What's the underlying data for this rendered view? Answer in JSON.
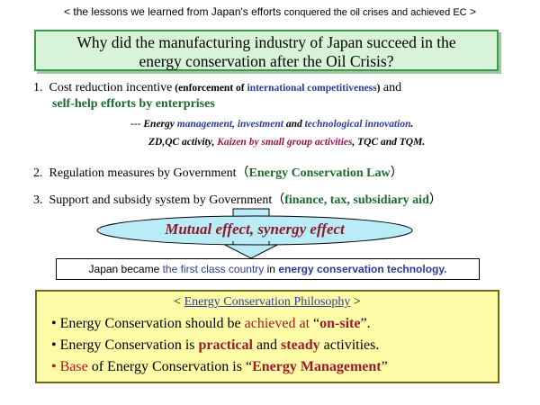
{
  "header": {
    "part1": "< the lessons we learned from Japan's efforts ",
    "part2": "conquered the oil crises and  achieved EC",
    "part3": " >"
  },
  "question": {
    "line1": "Why did the manufacturing industry of Japan succeed in the",
    "line2": "energy conservation after the Oil Crisis?"
  },
  "item1": {
    "number": "1.",
    "text": "Cost reduction incentive",
    "paren_open": " (enforcement of ",
    "paren_blue": "international competitiveness",
    "paren_close": ")",
    "and": " and",
    "line2": "self-help efforts by enterprises"
  },
  "sub1": {
    "dash": "--- ",
    "p1": "Energy ",
    "p2": "management, investment",
    "p3": " and ",
    "p4": "technological innovation",
    "p5": "."
  },
  "sub2": {
    "p1": "ZD,QC activity,  ",
    "p2": "Kaizen by small group activities",
    "p3": ", TQC and TQM."
  },
  "item2": {
    "number": "2.",
    "text": "Regulation measures by Government",
    "paren_open": "（",
    "highlight": "Energy Conservation Law",
    "paren_close": "）"
  },
  "item3": {
    "number": "3.",
    "text": "Support and subsidy system by Government",
    "paren_open": "（",
    "highlight": "finance, tax, subsidiary aid",
    "paren_close": "）"
  },
  "synergy": {
    "label": "Mutual effect, synergy effect"
  },
  "result": {
    "p1": "Japan became ",
    "p2": "the first class country",
    "p3": " in ",
    "p4": "energy conservation technology."
  },
  "philosophy": {
    "open": "< ",
    "title": "Energy Conservation Philosophy",
    "close": " >",
    "bullet": "•",
    "line1": {
      "p1": " Energy Conservation should be ",
      "p2": "achieved at",
      "p3": " “",
      "p4": "on-site",
      "p5": "”."
    },
    "line2": {
      "p1": " Energy Conservation is ",
      "p2": "practical",
      "p3": " and ",
      "p4": "steady",
      "p5": " activities."
    },
    "line3": {
      "p1": " Base",
      "p2": " of Energy Conservation is “",
      "p3": "Energy Management",
      "p4": "”"
    }
  },
  "colors": {
    "question_bg": "#d7f4d8",
    "ellipse_fill": "#b9ecf6",
    "philosophy_bg": "#fffca8",
    "green_text": "#1b6b2b",
    "blue_text": "#2a3c9a",
    "red_text": "#9b1b2a"
  }
}
